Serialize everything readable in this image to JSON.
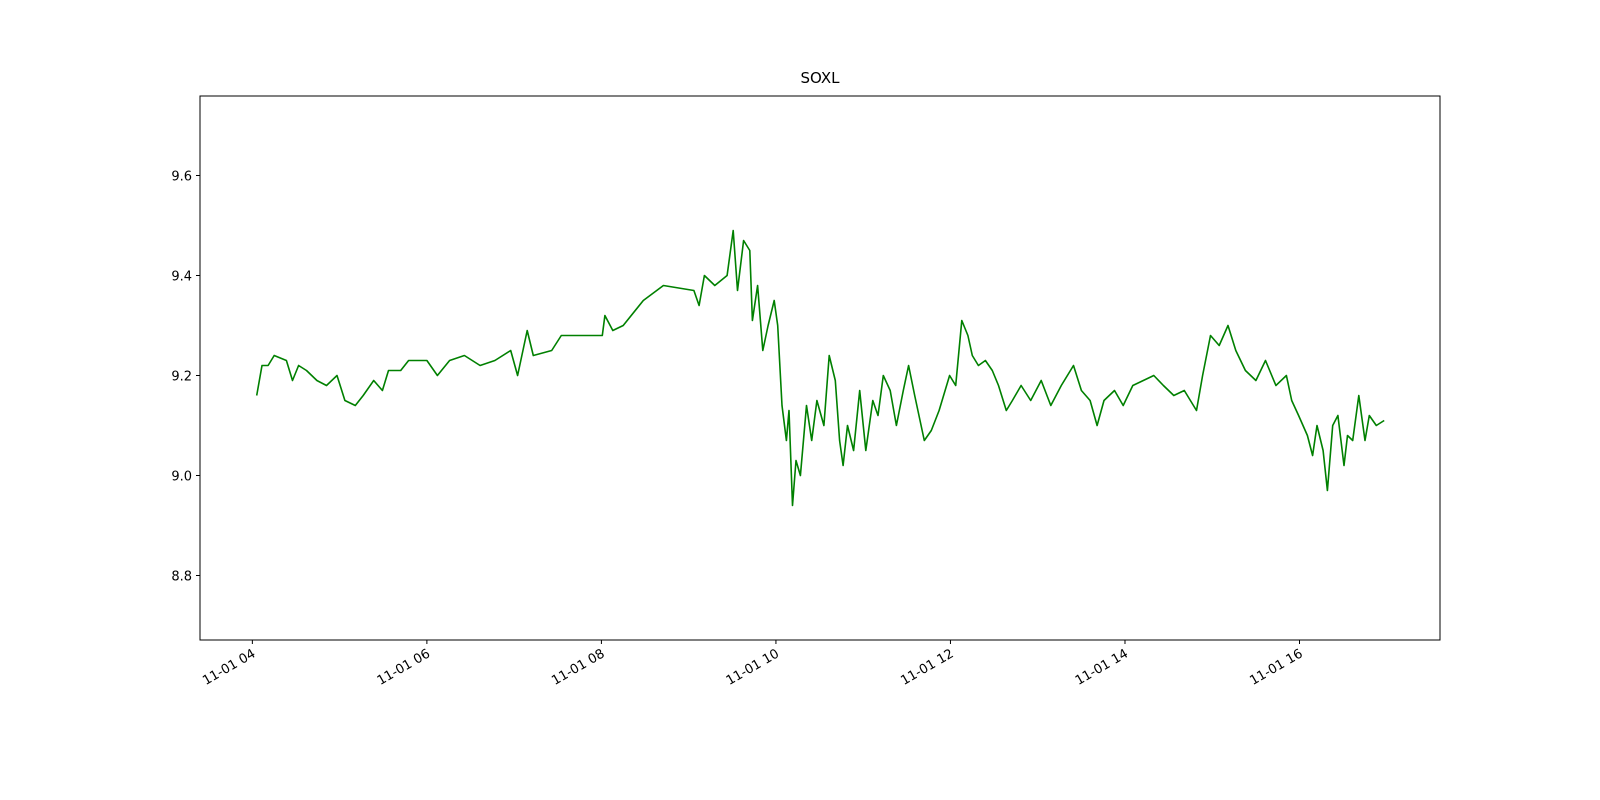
{
  "chart_data": {
    "type": "line",
    "title": "SOXL",
    "color": "#008000",
    "x": [
      4.05,
      4.11,
      4.18,
      4.25,
      4.39,
      4.46,
      4.53,
      4.62,
      4.74,
      4.85,
      4.97,
      5.06,
      5.18,
      5.27,
      5.39,
      5.49,
      5.56,
      5.7,
      5.79,
      6.0,
      6.12,
      6.26,
      6.43,
      6.61,
      6.78,
      6.96,
      7.04,
      7.15,
      7.22,
      7.43,
      7.54,
      8.01,
      8.04,
      8.13,
      8.25,
      8.48,
      8.71,
      9.06,
      9.12,
      9.18,
      9.3,
      9.44,
      9.51,
      9.56,
      9.63,
      9.7,
      9.73,
      9.79,
      9.85,
      9.91,
      9.98,
      10.02,
      10.07,
      10.12,
      10.15,
      10.19,
      10.23,
      10.28,
      10.35,
      10.41,
      10.47,
      10.55,
      10.61,
      10.68,
      10.73,
      10.77,
      10.82,
      10.89,
      10.96,
      11.03,
      11.11,
      11.17,
      11.23,
      11.31,
      11.38,
      11.46,
      11.52,
      11.59,
      11.7,
      11.78,
      11.87,
      11.99,
      12.06,
      12.13,
      12.2,
      12.25,
      12.32,
      12.4,
      12.48,
      12.55,
      12.64,
      12.71,
      12.81,
      12.92,
      13.04,
      13.15,
      13.27,
      13.41,
      13.5,
      13.6,
      13.68,
      13.76,
      13.88,
      13.98,
      14.09,
      14.21,
      14.33,
      14.44,
      14.56,
      14.68,
      14.82,
      14.89,
      14.98,
      15.08,
      15.18,
      15.27,
      15.38,
      15.5,
      15.61,
      15.73,
      15.85,
      15.91,
      15.99,
      16.09,
      16.15,
      16.2,
      16.27,
      16.32,
      16.38,
      16.44,
      16.51,
      16.55,
      16.61,
      16.68,
      16.75,
      16.8,
      16.88,
      16.97
    ],
    "values": [
      9.16,
      9.22,
      9.22,
      9.24,
      9.23,
      9.19,
      9.22,
      9.21,
      9.19,
      9.18,
      9.2,
      9.15,
      9.14,
      9.16,
      9.19,
      9.17,
      9.21,
      9.21,
      9.23,
      9.23,
      9.2,
      9.23,
      9.24,
      9.22,
      9.23,
      9.25,
      9.2,
      9.29,
      9.24,
      9.25,
      9.28,
      9.28,
      9.32,
      9.29,
      9.3,
      9.35,
      9.38,
      9.37,
      9.34,
      9.4,
      9.38,
      9.4,
      9.49,
      9.37,
      9.47,
      9.45,
      9.31,
      9.38,
      9.25,
      9.3,
      9.35,
      9.3,
      9.14,
      9.07,
      9.13,
      8.94,
      9.03,
      9.0,
      9.14,
      9.07,
      9.15,
      9.1,
      9.24,
      9.19,
      9.07,
      9.02,
      9.1,
      9.05,
      9.17,
      9.05,
      9.15,
      9.12,
      9.2,
      9.17,
      9.1,
      9.17,
      9.22,
      9.16,
      9.07,
      9.09,
      9.13,
      9.2,
      9.18,
      9.31,
      9.28,
      9.24,
      9.22,
      9.23,
      9.21,
      9.18,
      9.13,
      9.15,
      9.18,
      9.15,
      9.19,
      9.14,
      9.18,
      9.22,
      9.17,
      9.15,
      9.1,
      9.15,
      9.17,
      9.14,
      9.18,
      9.19,
      9.2,
      9.18,
      9.16,
      9.17,
      9.13,
      9.2,
      9.28,
      9.26,
      9.3,
      9.25,
      9.21,
      9.19,
      9.23,
      9.18,
      9.2,
      9.15,
      9.12,
      9.08,
      9.04,
      9.1,
      9.05,
      8.97,
      9.1,
      9.12,
      9.02,
      9.08,
      9.07,
      9.16,
      9.07,
      9.12,
      9.1,
      9.11
    ],
    "xlim": [
      3.4,
      17.61
    ],
    "xticks": [
      {
        "value": 4,
        "label": "11-01 04"
      },
      {
        "value": 6,
        "label": "11-01 06"
      },
      {
        "value": 8,
        "label": "11-01 08"
      },
      {
        "value": 10,
        "label": "11-01 10"
      },
      {
        "value": 12,
        "label": "11-01 12"
      },
      {
        "value": 14,
        "label": "11-01 14"
      },
      {
        "value": 16,
        "label": "11-01 16"
      }
    ],
    "ylim": [
      8.671,
      9.759
    ],
    "yticks": [
      {
        "value": 8.8,
        "label": "8.8"
      },
      {
        "value": 9.0,
        "label": "9.0"
      },
      {
        "value": 9.2,
        "label": "9.2"
      },
      {
        "value": 9.4,
        "label": "9.4"
      },
      {
        "value": 9.6,
        "label": "9.6"
      }
    ]
  }
}
